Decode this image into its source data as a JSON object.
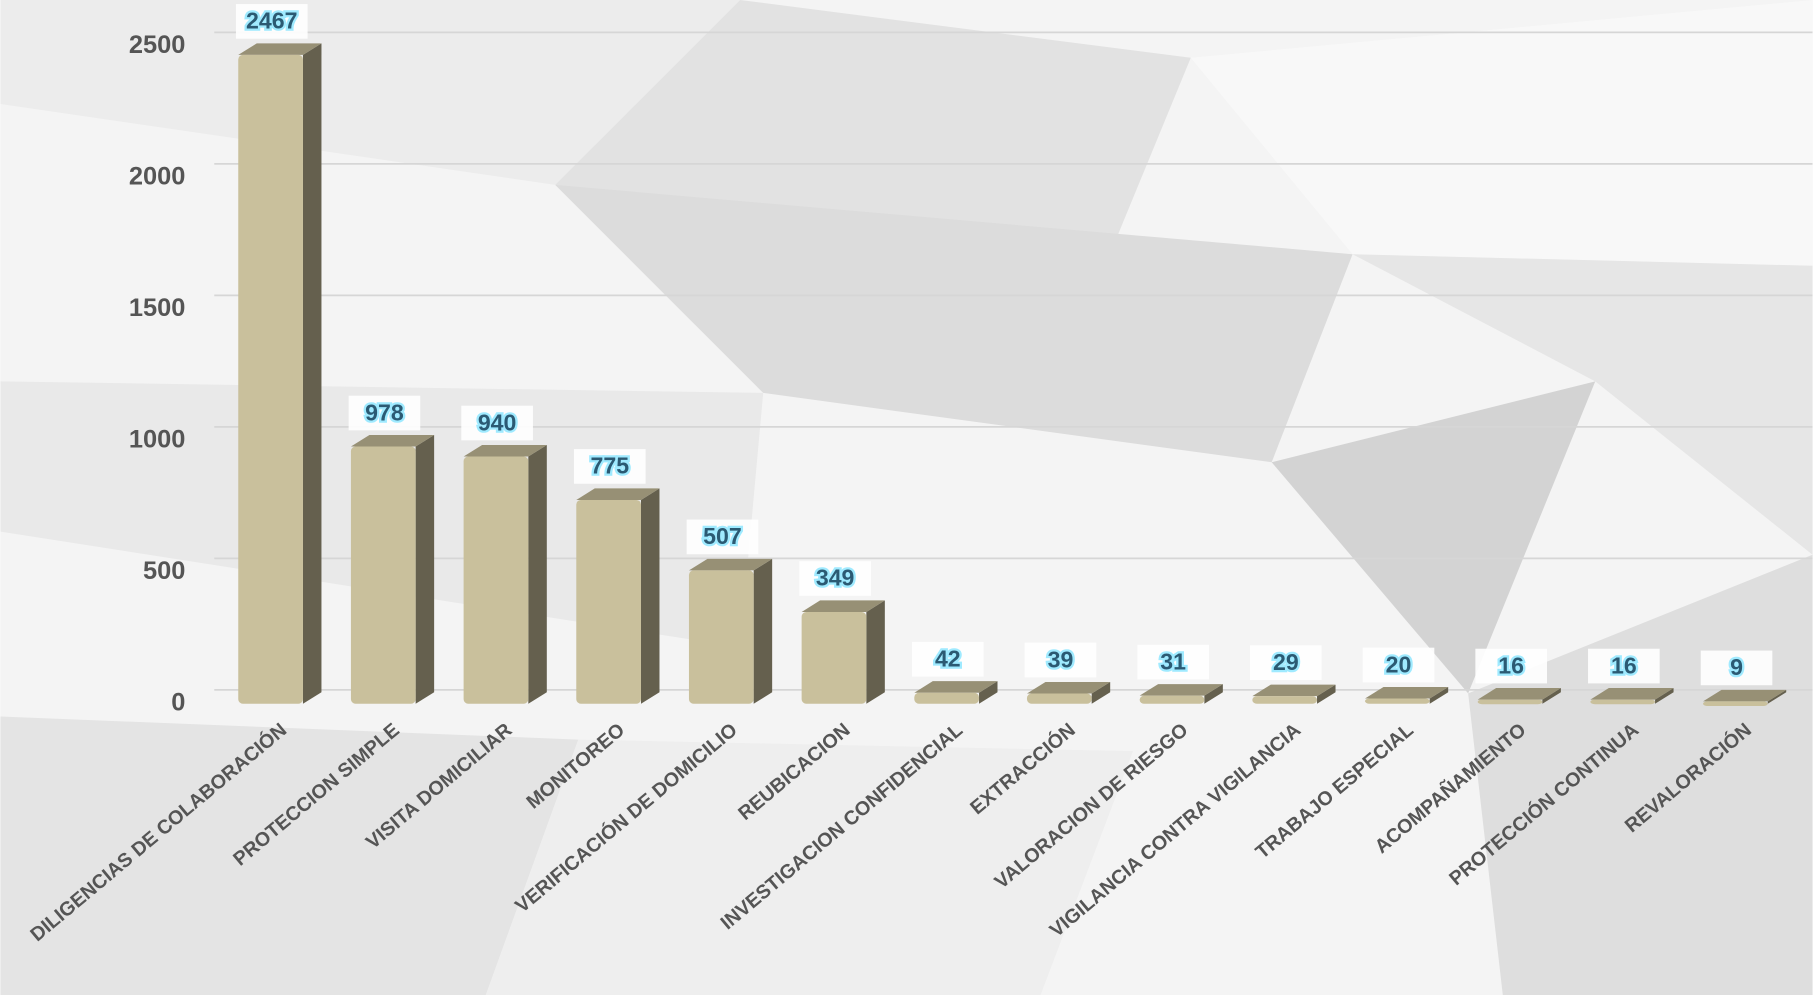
{
  "chart_data": {
    "type": "bar",
    "categories": [
      "DILIGENCIAS DE COLABORACIÓN",
      "PROTECCION SIMPLE",
      "VISITA DOMICILIAR",
      "MONITOREO",
      "VERIFICACIÓN DE DOMICILIO",
      "REUBICACION",
      "INVESTIGACION CONFIDENCIAL",
      "EXTRACCIÓN",
      "VALORACION DE RIESGO",
      "VIGILANCIA CONTRA VIGILANCIA",
      "TRABAJO ESPECIAL",
      "ACOMPAÑAMIENTO",
      "PROTECCIÓN CONTINUA",
      "REVALORACIÓN"
    ],
    "values": [
      2467,
      978,
      940,
      775,
      507,
      349,
      42,
      39,
      31,
      29,
      20,
      16,
      16,
      9
    ],
    "color": "#c9c09c",
    "ylim": [
      0,
      2500
    ],
    "yticks": [
      0,
      500,
      1000,
      1500,
      2000,
      2500
    ],
    "grid": true
  }
}
